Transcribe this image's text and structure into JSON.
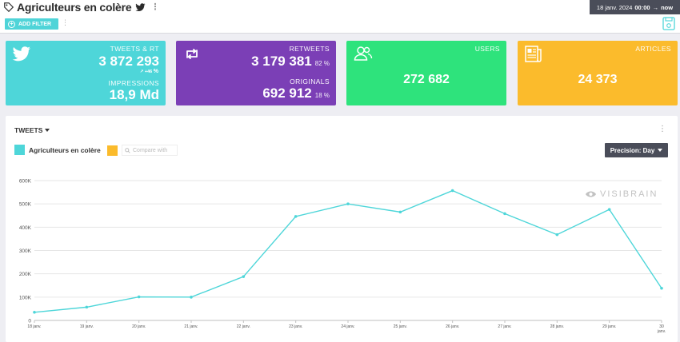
{
  "header": {
    "title": "Agriculteurs en colère",
    "date_start": "18 janv. 2024",
    "time_start": "00:00",
    "arrow": "→",
    "date_end": "now"
  },
  "filterbar": {
    "add_filter_label": "ADD FILTER",
    "plus_symbol": "+"
  },
  "cards": {
    "tweets": {
      "label": "TWEETS & RT",
      "value": "3 872 293",
      "trend": "+46",
      "trend_unit": "%",
      "sub_label": "IMPRESSIONS",
      "sub_value": "18,9 Md",
      "color": "#4ed6d9",
      "icon": "twitter-bird-icon"
    },
    "retweets": {
      "label": "RETWEETS",
      "value": "3 179 381",
      "pct": "82 %",
      "sub_label": "ORIGINALS",
      "sub_value": "692 912",
      "sub_pct": "18 %",
      "color": "#7b3fb6",
      "icon": "retweet-icon"
    },
    "users": {
      "label": "USERS",
      "value": "272 682",
      "color": "#2ee37c",
      "icon": "users-icon"
    },
    "articles": {
      "label": "ARTICLES",
      "value": "24 373",
      "color": "#fbbb2c",
      "icon": "newspaper-icon"
    }
  },
  "panel": {
    "title": "TWEETS",
    "legend_series": "Agriculteurs en colère",
    "legend_series_color": "#4ed6d9",
    "compare_placeholder": "Compare with",
    "compare_color": "#fbbb2c",
    "precision_label": "Precision: Day",
    "watermark": "VISIBRAIN"
  },
  "chart_data": {
    "type": "line",
    "x": [
      "18 janv.",
      "19 janv.",
      "20 janv.",
      "21 janv.",
      "22 janv.",
      "23 janv.",
      "24 janv.",
      "25 janv.",
      "26 janv.",
      "27 janv.",
      "28 janv.",
      "29 janv.",
      "30 janv."
    ],
    "series": [
      {
        "name": "Agriculteurs en colère",
        "color": "#4ed6d9",
        "values": [
          35000,
          57000,
          101000,
          100000,
          188000,
          446000,
          500000,
          465000,
          557000,
          458000,
          368000,
          476000,
          138000
        ]
      }
    ],
    "ylim": [
      0,
      600000
    ],
    "yticks": [
      0,
      100000,
      200000,
      300000,
      400000,
      500000,
      600000
    ],
    "ytick_labels": [
      "0",
      "100K",
      "200K",
      "300K",
      "400K",
      "500K",
      "600K"
    ],
    "grid": true,
    "title": "",
    "xlabel": "",
    "ylabel": ""
  }
}
